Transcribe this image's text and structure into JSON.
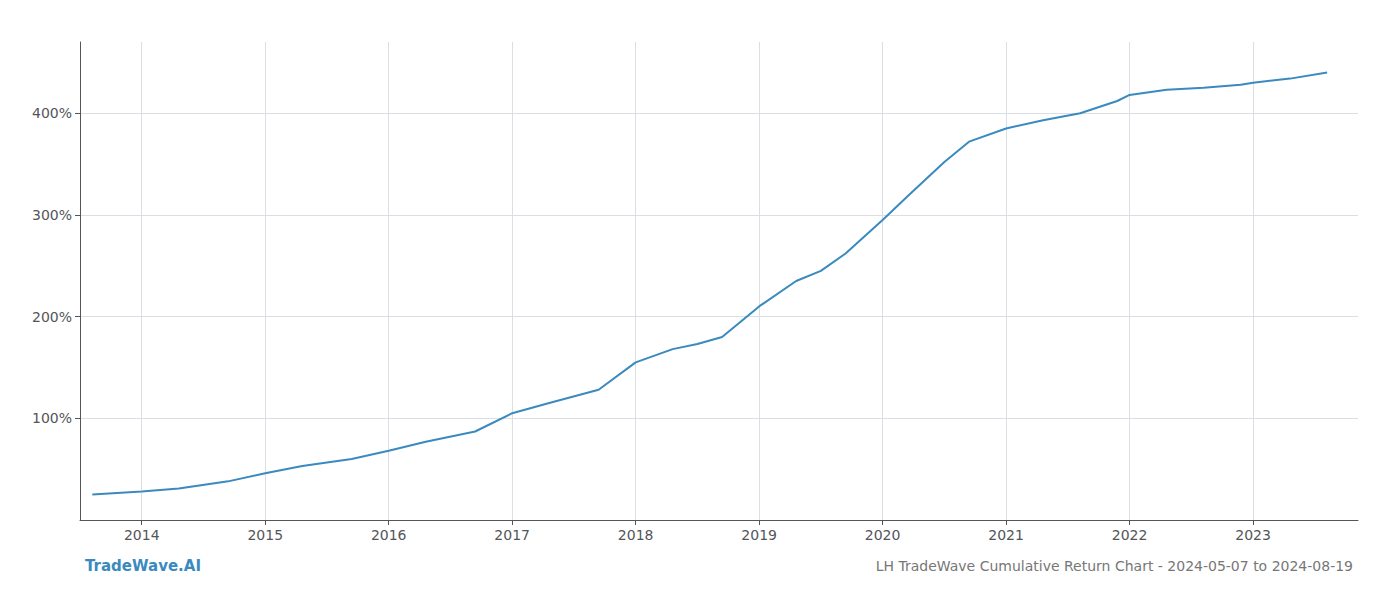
{
  "chart_data": {
    "type": "line",
    "title": "LH TradeWave Cumulative Return Chart - 2024-05-07 to 2024-08-19",
    "annotations": [
      "TradeWave.AI"
    ],
    "x": [
      2013.6,
      2014.0,
      2014.3,
      2014.7,
      2015.0,
      2015.3,
      2015.7,
      2016.0,
      2016.3,
      2016.7,
      2017.0,
      2017.3,
      2017.7,
      2018.0,
      2018.3,
      2018.5,
      2018.7,
      2019.0,
      2019.3,
      2019.5,
      2019.7,
      2020.0,
      2020.2,
      2020.5,
      2020.7,
      2021.0,
      2021.3,
      2021.6,
      2021.9,
      2022.0,
      2022.3,
      2022.6,
      2022.9,
      2023.0,
      2023.3,
      2023.6
    ],
    "values": [
      25,
      28,
      31,
      38,
      46,
      53,
      60,
      68,
      77,
      87,
      105,
      115,
      128,
      155,
      168,
      173,
      180,
      210,
      235,
      245,
      262,
      295,
      318,
      352,
      372,
      385,
      393,
      400,
      412,
      418,
      423,
      425,
      428,
      430,
      434,
      440
    ],
    "color": "#3a8abf",
    "xlim": [
      2013.5,
      2023.85
    ],
    "xticks": [
      2014,
      2015,
      2016,
      2017,
      2018,
      2019,
      2020,
      2021,
      2022,
      2023
    ],
    "ylim": [
      0,
      470
    ],
    "yticks": [
      {
        "value": 100,
        "label": "100%"
      },
      {
        "value": 200,
        "label": "200%"
      },
      {
        "value": 300,
        "label": "300%"
      },
      {
        "value": 400,
        "label": "400%"
      }
    ],
    "grid": true
  }
}
